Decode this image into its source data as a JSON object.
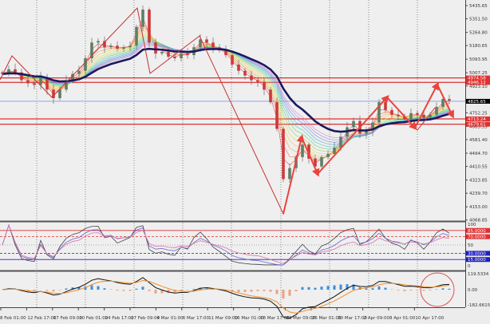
{
  "chart_data": {
    "type": "candlestick",
    "instrument_chart": "price with moving-average ribbon, RSI and MACD sub-panels",
    "price_axis": {
      "ticks": [
        "5435.65",
        "5351.50",
        "5264.80",
        "5180.65",
        "5093.95",
        "5007.25",
        "4923.10",
        "4752.25",
        "4665.55",
        "4581.40",
        "4494.70",
        "4410.55",
        "4323.85",
        "4239.70",
        "4153.00",
        "4068.85"
      ],
      "range": [
        4068.85,
        5435.65
      ]
    },
    "time_axis": {
      "ticks": [
        "8 Feb 01:00",
        "12 Feb 17:00",
        "17 Feb 09:00",
        "20 Feb 01:00",
        "24 Feb 17:00",
        "27 Feb 09:00",
        "4 Mar 01:00",
        "6 Mar 17:00",
        "11 Mar 09:00",
        "16 Mar 01:00",
        "18 Mar 17:00",
        "23 Mar 09:00",
        "26 Mar 01:00",
        "30 Mar 17:00",
        "2 Apr 09:00",
        "8 Apr 01:00",
        "10 Apr 17:00"
      ]
    },
    "close": [
      5000,
      5030,
      5010,
      4960,
      4940,
      4930,
      4980,
      4900,
      4846,
      4900,
      4960,
      5000,
      5020,
      5100,
      5200,
      5210,
      5170,
      5180,
      5160,
      5170,
      5180,
      5300,
      5410,
      5200,
      5130,
      5140,
      5110,
      5100,
      5130,
      5120,
      5170,
      5220,
      5200,
      5170,
      5150,
      5120,
      5060,
      5020,
      4990,
      4960,
      4950,
      4900,
      4820,
      4650,
      4330,
      4400,
      4470,
      4550,
      4460,
      4410,
      4470,
      4490,
      4530,
      4600,
      4660,
      4700,
      4620,
      4640,
      4690,
      4820,
      4770,
      4740,
      4730,
      4710,
      4750,
      4740,
      4720,
      4740,
      4790,
      4840,
      4830
    ],
    "current_price": {
      "label": "4825.65",
      "color": "#000000"
    },
    "horizontal_levels": [
      {
        "label": "4974.58",
        "price": 4974.58,
        "color": "#e03030"
      },
      {
        "label": "4946.12",
        "price": 4946.12,
        "color": "#e03030"
      },
      {
        "label": "4713.24",
        "price": 4713.24,
        "color": "#e03030"
      },
      {
        "label": "4679.61",
        "price": 4679.61,
        "color": "#e03030"
      }
    ],
    "blue_level": {
      "price": 4825.65,
      "color": "#8fa8e0"
    },
    "rsi_panel": {
      "ticks": [
        "100",
        "50",
        "0"
      ],
      "levels": [
        {
          "label": "85.0000",
          "value": 85,
          "color": "#e03030"
        },
        {
          "label": "70.0000",
          "value": 70,
          "color": "#e03030"
        },
        {
          "label": "30.0000",
          "value": 30,
          "color": "#2020c0"
        },
        {
          "label": "15.0000",
          "value": 15,
          "color": "#2020c0"
        }
      ]
    },
    "macd_panel": {
      "ticks": [
        "119.5334",
        "0.00",
        "-182.6615"
      ],
      "range": [
        -182.6615,
        119.5334
      ]
    },
    "colors": {
      "bull": "#5e7f66",
      "bear": "#cc3a3a",
      "main_ma": "#1a1a5e",
      "annotation": "#e8453c"
    }
  }
}
